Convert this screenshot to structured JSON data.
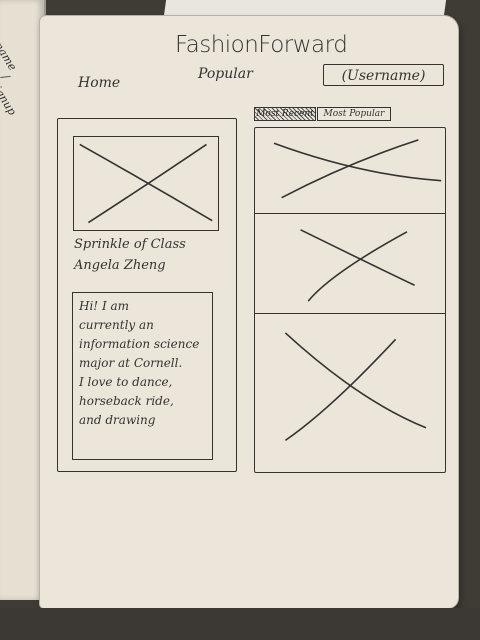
{
  "app": {
    "title": "FashionForward"
  },
  "nav": {
    "home": "Home",
    "popular": "Popular",
    "user_button": "(Username)"
  },
  "profile": {
    "title": "Sprinkle of Class",
    "name": "Angela Zheng",
    "bio_lines": [
      "Hi! I am",
      "currently an",
      "information science",
      "major at Cornell.",
      "I love to dance,",
      "horseback ride,",
      "and drawing"
    ]
  },
  "tabs": [
    {
      "label": "Most Recent",
      "state": "crossed-out"
    },
    {
      "label": "Most Popular",
      "state": "selected"
    }
  ],
  "feed": {
    "items": [
      {
        "icon": "image-placeholder-icon"
      },
      {
        "icon": "image-placeholder-icon"
      },
      {
        "icon": "image-placeholder-icon"
      }
    ]
  },
  "margin_notes": [
    "name",
    "/ signup"
  ],
  "colors": {
    "ink": "#333333",
    "paper": "#ebe6d9",
    "background": "#3f3b35"
  }
}
